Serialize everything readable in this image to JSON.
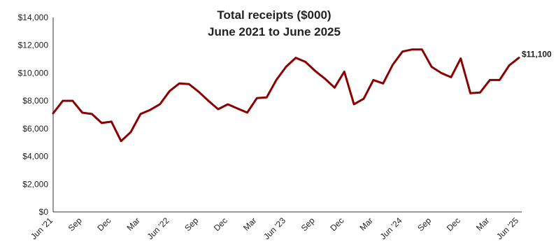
{
  "colors": {
    "line": "#8b0000",
    "axis": "#333333",
    "text": "#222222"
  },
  "chart_data": {
    "type": "line",
    "title": [
      "Total receipts ($000)",
      "June 2021 to June 2025"
    ],
    "xlabel": "",
    "ylabel": "",
    "ylim": [
      0,
      14000
    ],
    "y_ticks": [
      0,
      2000,
      4000,
      6000,
      8000,
      10000,
      12000,
      14000
    ],
    "y_tick_labels": [
      "$0",
      "$2,000",
      "$4,000",
      "$6,000",
      "$8,000",
      "$10,000",
      "$12,000",
      "$14,000"
    ],
    "grid": false,
    "x": [
      "2021-06",
      "2021-07",
      "2021-08",
      "2021-09",
      "2021-10",
      "2021-11",
      "2021-12",
      "2022-01",
      "2022-02",
      "2022-03",
      "2022-04",
      "2022-05",
      "2022-06",
      "2022-07",
      "2022-08",
      "2022-09",
      "2022-10",
      "2022-11",
      "2022-12",
      "2023-01",
      "2023-02",
      "2023-03",
      "2023-04",
      "2023-05",
      "2023-06",
      "2023-07",
      "2023-08",
      "2023-09",
      "2023-10",
      "2023-11",
      "2023-12",
      "2024-01",
      "2024-02",
      "2024-03",
      "2024-04",
      "2024-05",
      "2024-06",
      "2024-07",
      "2024-08",
      "2024-09",
      "2024-10",
      "2024-11",
      "2024-12",
      "2025-01",
      "2025-02",
      "2025-03",
      "2025-04",
      "2025-05",
      "2025-06"
    ],
    "x_tick_labels": [
      {
        "index": 0,
        "label": "Jun '21"
      },
      {
        "index": 3,
        "label": "Sep"
      },
      {
        "index": 6,
        "label": "Dec"
      },
      {
        "index": 9,
        "label": "Mar"
      },
      {
        "index": 12,
        "label": "Jun '22"
      },
      {
        "index": 15,
        "label": "Sep"
      },
      {
        "index": 18,
        "label": "Dec"
      },
      {
        "index": 21,
        "label": "Mar"
      },
      {
        "index": 24,
        "label": "Jun '23"
      },
      {
        "index": 27,
        "label": "Sep"
      },
      {
        "index": 30,
        "label": "Dec"
      },
      {
        "index": 33,
        "label": "Mar"
      },
      {
        "index": 36,
        "label": "Jun '24"
      },
      {
        "index": 39,
        "label": "Sep"
      },
      {
        "index": 42,
        "label": "Dec"
      },
      {
        "index": 45,
        "label": "Mar"
      },
      {
        "index": 48,
        "label": "Jun '25"
      }
    ],
    "series": [
      {
        "values": [
          7100,
          8000,
          8000,
          7150,
          7050,
          6400,
          6500,
          5100,
          5750,
          7050,
          7350,
          7750,
          8700,
          9250,
          9200,
          8650,
          8000,
          7400,
          7750,
          7450,
          7150,
          8200,
          8250,
          9500,
          10450,
          11100,
          10800,
          10150,
          9600,
          8950,
          10100,
          7750,
          8150,
          9500,
          9250,
          10600,
          11550,
          11700,
          11700,
          10450,
          10000,
          9700,
          11050,
          8550,
          8600,
          9500,
          9500,
          10550,
          11100
        ]
      }
    ],
    "end_label": "$11,100"
  }
}
